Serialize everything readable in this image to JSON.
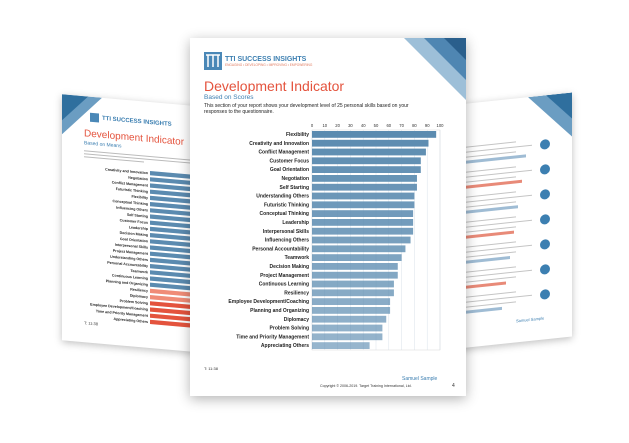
{
  "front": {
    "brand": "TTI SUCCESS INSIGHTS",
    "brand_tagline": "ENGAGING • DEVELOPING • IMPROVING • EMPOWERING",
    "title": "Development Indicator",
    "subtitle": "Based on Scores",
    "intro": "This section of your report shows your development level of 25 personal skills based on your responses to the questionnaire.",
    "code": "T: 11:38",
    "sample_name": "Samuel Sample",
    "copyright": "Copyright © 2006-2019. Target Training International, Ltd.",
    "page_number": "4"
  },
  "left": {
    "brand": "TTI SUCCESS INSIGHTS",
    "title": "Development Indicator",
    "subtitle": "Based on Means",
    "code": "T: 11:38"
  },
  "right": {
    "sample_name": "Samuel Sample"
  },
  "colors": {
    "bar": "#5b8bb0",
    "bar_light": "#a9c6dc",
    "accent_red": "#e4533d",
    "brand_blue": "#3c7fb1"
  },
  "chart_data": [
    {
      "type": "bar",
      "orientation": "horizontal",
      "xticks": [
        "0",
        "10",
        "20",
        "30",
        "40",
        "50",
        "60",
        "70",
        "80",
        "90",
        "100"
      ],
      "xlim": [
        0,
        100
      ],
      "grid": true,
      "categories": [
        "Flexibility",
        "Creativity and Innovation",
        "Conflict Management",
        "Customer Focus",
        "Goal Orientation",
        "Negotiation",
        "Self Starting",
        "Understanding Others",
        "Futuristic Thinking",
        "Conceptual Thinking",
        "Leadership",
        "Interpersonal Skills",
        "Influencing Others",
        "Personal Accountability",
        "Teamwork",
        "Decision Making",
        "Project Management",
        "Continuous Learning",
        "Resiliency",
        "Employee Development/Coaching",
        "Planning and Organizing",
        "Diplomacy",
        "Problem Solving",
        "Time and Priority Management",
        "Appreciating Others"
      ],
      "values": [
        97,
        91,
        89,
        85,
        85,
        82,
        82,
        80,
        80,
        79,
        79,
        79,
        77,
        73,
        70,
        67,
        67,
        64,
        64,
        61,
        61,
        58,
        55,
        55,
        45
      ]
    },
    {
      "type": "bar",
      "orientation": "horizontal",
      "xlim": [
        0,
        100
      ],
      "categories": [
        "Creativity and Innovation",
        "Negotiation",
        "Conflict Management",
        "Futuristic Thinking",
        "Flexibility",
        "Conceptual Thinking",
        "Influencing Others",
        "Self Starting",
        "Customer Focus",
        "Leadership",
        "Decision Making",
        "Goal Orientation",
        "Interpersonal Skills",
        "Project Management",
        "Understanding Others",
        "Personal Accountability",
        "Teamwork",
        "Continuous Learning",
        "Planning and Organizing",
        "Resiliency",
        "Diplomacy",
        "Problem Solving",
        "Employee Development/Coaching",
        "Time and Priority Management",
        "Appreciating Others"
      ],
      "values": [
        90,
        88,
        86,
        85,
        84,
        83,
        82,
        81,
        80,
        79,
        74,
        73,
        72,
        71,
        70,
        69,
        68,
        66,
        64,
        63,
        62,
        60,
        58,
        57,
        55
      ]
    }
  ]
}
